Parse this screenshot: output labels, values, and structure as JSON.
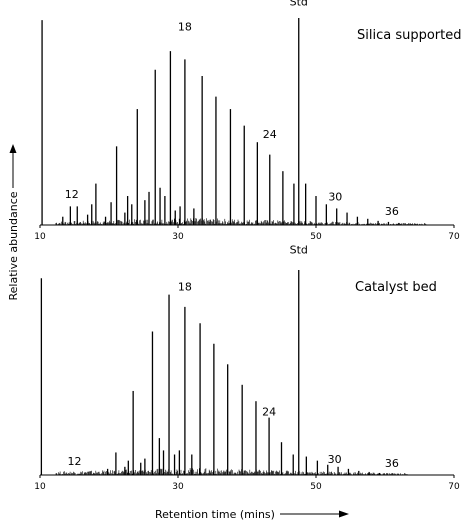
{
  "chart_data": [
    {
      "type": "line",
      "title": "Silica supported",
      "x_axis": {
        "min": 10,
        "max": 70,
        "ticks": [
          10,
          30,
          50,
          70
        ]
      },
      "y_axis": {
        "min": 0,
        "max": 100,
        "tick_labels": false
      },
      "series": [
        {
          "peaks": [
            {
              "x": 10.3,
              "y": 99
            },
            {
              "x": 13.3,
              "y": 4
            },
            {
              "x": 14.4,
              "y": 9
            },
            {
              "x": 15.4,
              "y": 9
            },
            {
              "x": 16.9,
              "y": 5
            },
            {
              "x": 17.5,
              "y": 10
            },
            {
              "x": 18.1,
              "y": 20
            },
            {
              "x": 19.5,
              "y": 4
            },
            {
              "x": 20.3,
              "y": 11
            },
            {
              "x": 21.1,
              "y": 38
            },
            {
              "x": 22.3,
              "y": 6
            },
            {
              "x": 22.7,
              "y": 14
            },
            {
              "x": 23.3,
              "y": 10
            },
            {
              "x": 24.1,
              "y": 56
            },
            {
              "x": 25.2,
              "y": 12
            },
            {
              "x": 25.8,
              "y": 16
            },
            {
              "x": 26.7,
              "y": 75
            },
            {
              "x": 27.4,
              "y": 18
            },
            {
              "x": 28.1,
              "y": 14
            },
            {
              "x": 28.9,
              "y": 84
            },
            {
              "x": 29.6,
              "y": 7
            },
            {
              "x": 30.3,
              "y": 9
            },
            {
              "x": 31.0,
              "y": 80
            },
            {
              "x": 32.3,
              "y": 8
            },
            {
              "x": 33.5,
              "y": 72
            },
            {
              "x": 35.5,
              "y": 62
            },
            {
              "x": 37.6,
              "y": 56
            },
            {
              "x": 39.6,
              "y": 48
            },
            {
              "x": 41.5,
              "y": 40
            },
            {
              "x": 43.3,
              "y": 34
            },
            {
              "x": 45.2,
              "y": 26
            },
            {
              "x": 46.8,
              "y": 20
            },
            {
              "x": 47.5,
              "y": 100
            },
            {
              "x": 48.5,
              "y": 20
            },
            {
              "x": 50.0,
              "y": 14
            },
            {
              "x": 51.5,
              "y": 10
            },
            {
              "x": 53.0,
              "y": 8
            },
            {
              "x": 54.5,
              "y": 6
            },
            {
              "x": 56.0,
              "y": 4
            },
            {
              "x": 57.5,
              "y": 3
            },
            {
              "x": 59.0,
              "y": 2
            },
            {
              "x": 60.5,
              "y": 1.5
            },
            {
              "x": 62.0,
              "y": 1
            }
          ]
        }
      ],
      "annotations": [
        {
          "text": "12",
          "x": 14.6,
          "y": 11
        },
        {
          "text": "18",
          "x": 31.0,
          "y": 92
        },
        {
          "text": "24",
          "x": 43.3,
          "y": 40
        },
        {
          "text": "30",
          "x": 52.8,
          "y": 10
        },
        {
          "text": "36",
          "x": 61.0,
          "y": 3
        },
        {
          "text": "Std",
          "x": 47.5,
          "y": 104
        }
      ]
    },
    {
      "type": "line",
      "title": "Catalyst bed",
      "x_axis": {
        "min": 10,
        "max": 70,
        "ticks": [
          10,
          30,
          50,
          70
        ]
      },
      "y_axis": {
        "min": 0,
        "max": 100,
        "tick_labels": false
      },
      "series": [
        {
          "peaks": [
            {
              "x": 10.2,
              "y": 96
            },
            {
              "x": 19.8,
              "y": 3
            },
            {
              "x": 21.0,
              "y": 11
            },
            {
              "x": 22.3,
              "y": 4
            },
            {
              "x": 22.8,
              "y": 7
            },
            {
              "x": 23.5,
              "y": 41
            },
            {
              "x": 24.6,
              "y": 6
            },
            {
              "x": 25.2,
              "y": 8
            },
            {
              "x": 26.3,
              "y": 70
            },
            {
              "x": 27.3,
              "y": 18
            },
            {
              "x": 27.9,
              "y": 12
            },
            {
              "x": 28.7,
              "y": 88
            },
            {
              "x": 29.5,
              "y": 10
            },
            {
              "x": 30.2,
              "y": 12
            },
            {
              "x": 31.0,
              "y": 82
            },
            {
              "x": 32.0,
              "y": 10
            },
            {
              "x": 33.2,
              "y": 74
            },
            {
              "x": 35.2,
              "y": 64
            },
            {
              "x": 37.2,
              "y": 54
            },
            {
              "x": 39.3,
              "y": 44
            },
            {
              "x": 41.3,
              "y": 36
            },
            {
              "x": 43.2,
              "y": 28
            },
            {
              "x": 45.0,
              "y": 16
            },
            {
              "x": 46.7,
              "y": 10
            },
            {
              "x": 47.5,
              "y": 100
            },
            {
              "x": 48.6,
              "y": 9
            },
            {
              "x": 50.2,
              "y": 7
            },
            {
              "x": 51.7,
              "y": 5
            },
            {
              "x": 53.2,
              "y": 4
            },
            {
              "x": 54.7,
              "y": 3
            },
            {
              "x": 56.2,
              "y": 2
            },
            {
              "x": 57.7,
              "y": 1.5
            },
            {
              "x": 59.2,
              "y": 1
            }
          ]
        }
      ],
      "annotations": [
        {
          "text": "12",
          "x": 15.0,
          "y": 3
        },
        {
          "text": "18",
          "x": 31.0,
          "y": 88
        },
        {
          "text": "24",
          "x": 43.2,
          "y": 27
        },
        {
          "text": "30",
          "x": 52.7,
          "y": 4
        },
        {
          "text": "36",
          "x": 61.0,
          "y": 2
        },
        {
          "text": "Std",
          "x": 47.5,
          "y": 106
        }
      ]
    }
  ],
  "shared": {
    "xlabel": "Retention time (mins)",
    "ylabel": "Relative abundance"
  }
}
